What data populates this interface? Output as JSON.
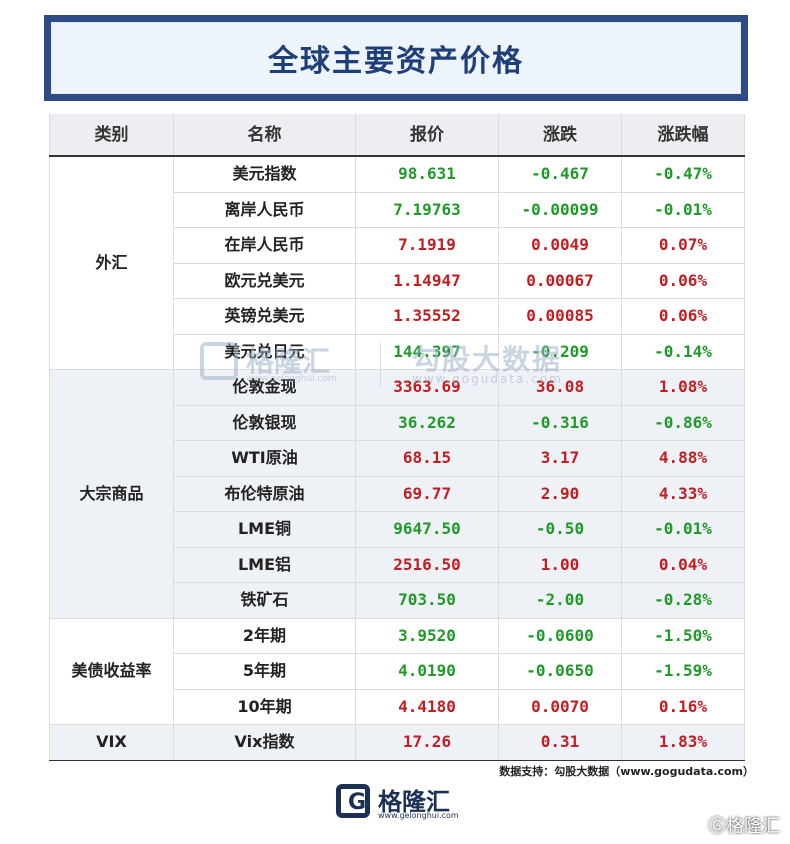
{
  "title": "全球主要资产价格",
  "headers": [
    "类别",
    "名称",
    "报价",
    "涨跌",
    "涨跌幅"
  ],
  "categories": {
    "fx": "外汇",
    "commodities": "大宗商品",
    "treasuries": "美债收益率",
    "vix": "VIX"
  },
  "rows": [
    {
      "name": "美元指数",
      "price": "98.631",
      "change": "-0.467",
      "pct": "-0.47%",
      "dir": "down"
    },
    {
      "name": "离岸人民币",
      "price": "7.19763",
      "change": "-0.00099",
      "pct": "-0.01%",
      "dir": "down"
    },
    {
      "name": "在岸人民币",
      "price": "7.1919",
      "change": "0.0049",
      "pct": "0.07%",
      "dir": "up"
    },
    {
      "name": "欧元兑美元",
      "price": "1.14947",
      "change": "0.00067",
      "pct": "0.06%",
      "dir": "up"
    },
    {
      "name": "英镑兑美元",
      "price": "1.35552",
      "change": "0.00085",
      "pct": "0.06%",
      "dir": "up"
    },
    {
      "name": "美元兑日元",
      "price": "144.397",
      "change": "-0.209",
      "pct": "-0.14%",
      "dir": "down"
    },
    {
      "name": "伦敦金现",
      "price": "3363.69",
      "change": "36.08",
      "pct": "1.08%",
      "dir": "up"
    },
    {
      "name": "伦敦银现",
      "price": "36.262",
      "change": "-0.316",
      "pct": "-0.86%",
      "dir": "down"
    },
    {
      "name": "WTI原油",
      "price": "68.15",
      "change": "3.17",
      "pct": "4.88%",
      "dir": "up"
    },
    {
      "name": "布伦特原油",
      "price": "69.77",
      "change": "2.90",
      "pct": "4.33%",
      "dir": "up"
    },
    {
      "name": "LME铜",
      "price": "9647.50",
      "change": "-0.50",
      "pct": "-0.01%",
      "dir": "down"
    },
    {
      "name": "LME铝",
      "price": "2516.50",
      "change": "1.00",
      "pct": "0.04%",
      "dir": "up"
    },
    {
      "name": "铁矿石",
      "price": "703.50",
      "change": "-2.00",
      "pct": "-0.28%",
      "dir": "down"
    },
    {
      "name": "2年期",
      "price": "3.9520",
      "change": "-0.0600",
      "pct": "-1.50%",
      "dir": "down"
    },
    {
      "name": "5年期",
      "price": "4.0190",
      "change": "-0.0650",
      "pct": "-1.59%",
      "dir": "down"
    },
    {
      "name": "10年期",
      "price": "4.4180",
      "change": "0.0070",
      "pct": "0.16%",
      "dir": "up"
    },
    {
      "name": "Vix指数",
      "price": "17.26",
      "change": "0.31",
      "pct": "1.83%",
      "dir": "up"
    }
  ],
  "colors": {
    "up": "#c31d22",
    "down": "#1f9a28",
    "title": "#1f3f7a"
  },
  "watermark": {
    "brand": "格隆汇",
    "brand_url": "www.gelonghui.com",
    "data_brand": "勾股大数据",
    "data_url": "www.gogudata.com"
  },
  "source": "数据支持：勾股大数据（www.gogudata.com）",
  "logo": {
    "text": "格隆汇",
    "url": "www.gelonghui.com",
    "icon": "g-logo-icon"
  },
  "corner_mark": "Ⓖ格隆汇"
}
